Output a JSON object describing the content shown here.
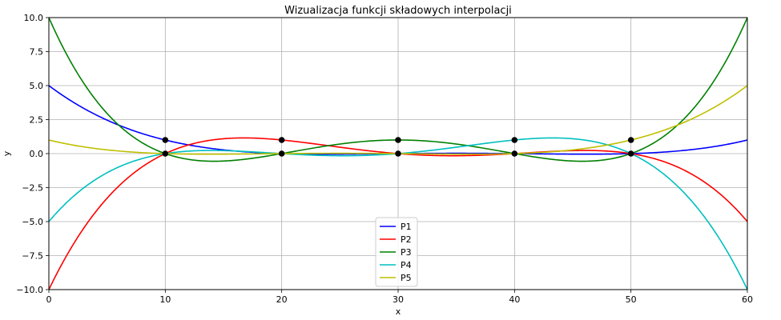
{
  "chart_data": {
    "type": "line",
    "title": "Wizualizacja funkcji składowych interpolacji",
    "xlabel": "x",
    "ylabel": "y",
    "xlim": [
      0,
      60
    ],
    "ylim": [
      -10,
      10
    ],
    "xticks": [
      0,
      10,
      20,
      30,
      40,
      50,
      60
    ],
    "yticks": [
      -10.0,
      -7.5,
      -5.0,
      -2.5,
      0.0,
      2.5,
      5.0,
      7.5,
      10.0
    ],
    "xtick_labels": [
      "0",
      "10",
      "20",
      "30",
      "40",
      "50",
      "60"
    ],
    "ytick_labels": [
      "−10.0",
      "−7.5",
      "−5.0",
      "−2.5",
      "0.0",
      "2.5",
      "5.0",
      "7.5",
      "10.0"
    ],
    "grid": true,
    "legend_position": "bottom-center",
    "nodes": [
      10,
      20,
      30,
      40,
      50
    ],
    "series": [
      {
        "name": "P1",
        "color": "#0000ff",
        "node_values": [
          1,
          0,
          0,
          0,
          0
        ]
      },
      {
        "name": "P2",
        "color": "#ff0000",
        "node_values": [
          0,
          1,
          0,
          0,
          0
        ]
      },
      {
        "name": "P3",
        "color": "#008000",
        "node_values": [
          0,
          0,
          1,
          0,
          0
        ]
      },
      {
        "name": "P4",
        "color": "#00bfbf",
        "node_values": [
          0,
          0,
          0,
          1,
          0
        ]
      },
      {
        "name": "P5",
        "color": "#bfbf00",
        "node_values": [
          0,
          0,
          0,
          0,
          1
        ]
      }
    ],
    "points": [
      {
        "x": 10,
        "y": 1
      },
      {
        "x": 20,
        "y": 1
      },
      {
        "x": 30,
        "y": 1
      },
      {
        "x": 40,
        "y": 1
      },
      {
        "x": 50,
        "y": 1
      },
      {
        "x": 10,
        "y": 0
      },
      {
        "x": 20,
        "y": 0
      },
      {
        "x": 30,
        "y": 0
      },
      {
        "x": 40,
        "y": 0
      },
      {
        "x": 50,
        "y": 0
      }
    ],
    "point_color": "#000000"
  }
}
